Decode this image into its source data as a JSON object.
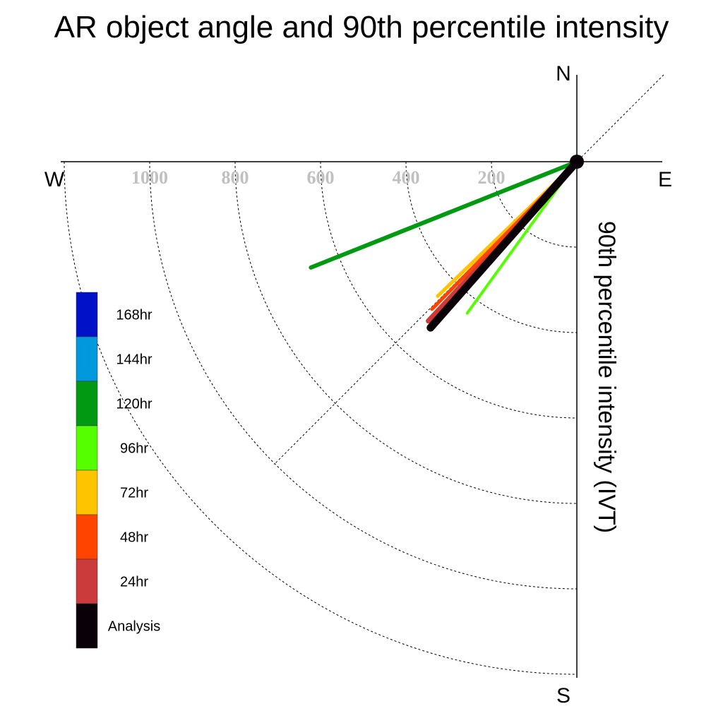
{
  "chart_data": {
    "type": "polar-vector",
    "title": "AR object angle and 90th percentile intensity",
    "ylabel": "90th percentile intensity (IVT)",
    "compass": {
      "north": "N",
      "south": "S",
      "east": "E",
      "west": "W"
    },
    "radial_ticks": [
      "200",
      "400",
      "600",
      "800",
      "1000"
    ],
    "radial_ticks_values": [
      200,
      400,
      600,
      800,
      1000
    ],
    "rmax": 1200,
    "grid": true,
    "legend_position": "left",
    "series": [
      {
        "name": "168hr",
        "color": "#0011c8",
        "angle_deg": null,
        "intensity": null
      },
      {
        "name": "144hr",
        "color": "#0099dd",
        "angle_deg": null,
        "intensity": null
      },
      {
        "name": "120hr",
        "color": "#009911",
        "angle_deg": 248.3,
        "intensity": 670
      },
      {
        "name": "96hr",
        "color": "#55ff00",
        "angle_deg": 215.9,
        "intensity": 438
      },
      {
        "name": "72hr",
        "color": "#ffc400",
        "angle_deg": 226.0,
        "intensity": 453
      },
      {
        "name": "48hr",
        "color": "#ff4400",
        "angle_deg": 224.5,
        "intensity": 484
      },
      {
        "name": "24hr",
        "color": "#cc3b3b",
        "angle_deg": 223.0,
        "intensity": 510
      },
      {
        "name": "Analysis",
        "color": "#0a0008",
        "angle_deg": 221.4,
        "intensity": 518
      }
    ]
  }
}
